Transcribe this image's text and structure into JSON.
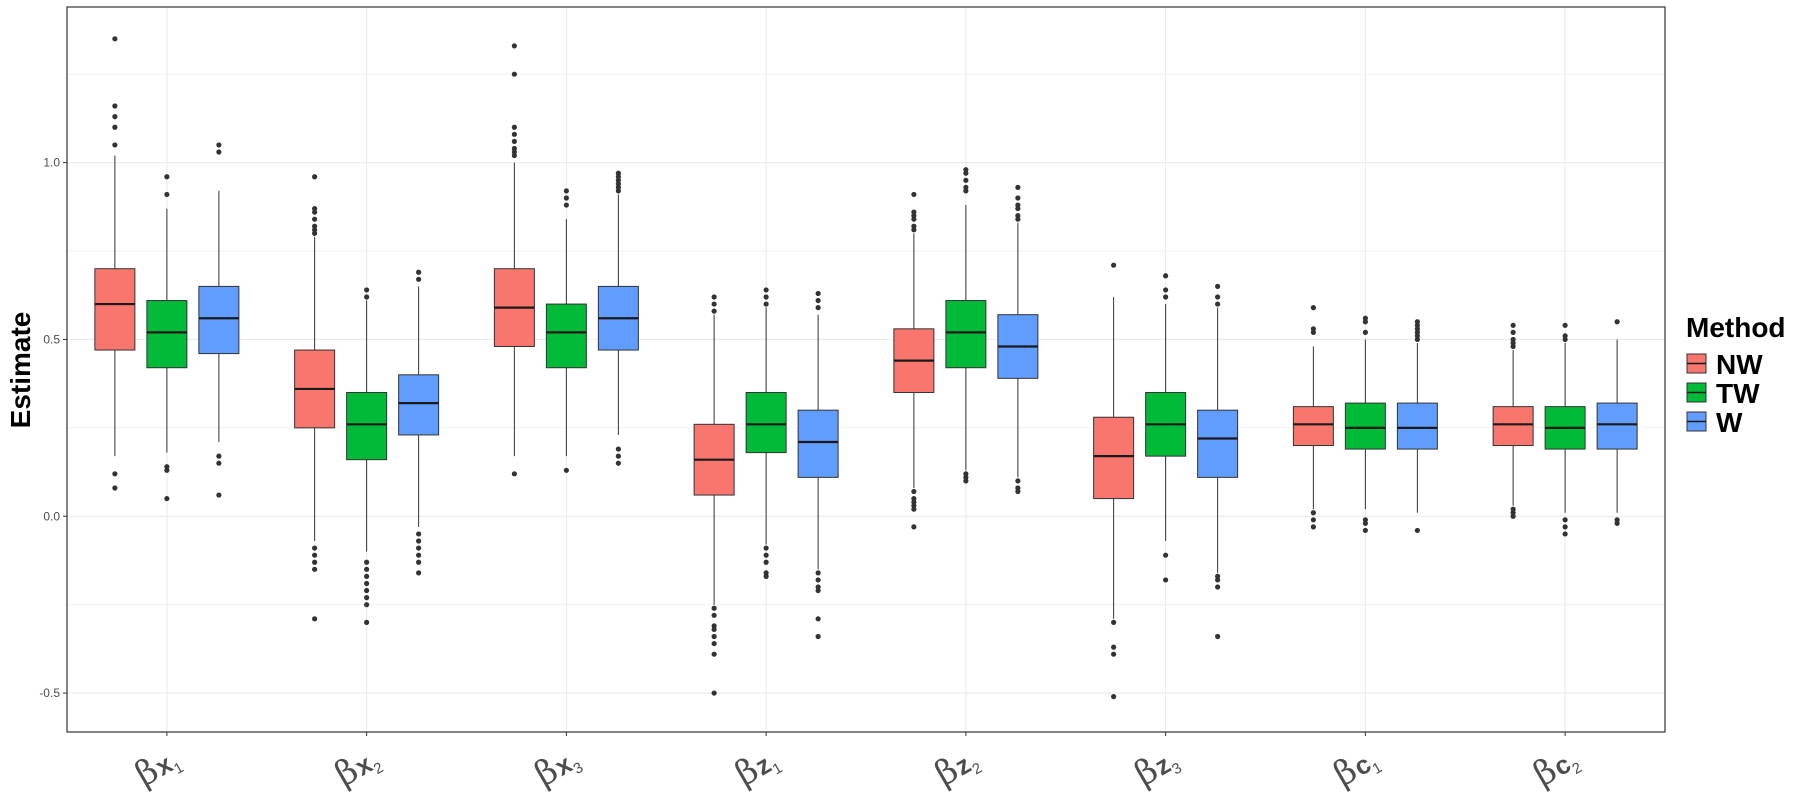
{
  "chart_data": {
    "type": "boxplot",
    "title": "",
    "xlabel": "",
    "ylabel": "Estimate",
    "ylim": [
      -0.61,
      1.44
    ],
    "yticks": [
      {
        "value": -0.5,
        "label": "-0.5"
      },
      {
        "value": 0.0,
        "label": "0.0"
      },
      {
        "value": 0.5,
        "label": "0.5"
      },
      {
        "value": 1.0,
        "label": "1.0"
      }
    ],
    "grid": true,
    "legend": {
      "title": "Method",
      "position": "right",
      "entries": [
        {
          "name": "NW",
          "color": "#F8766D"
        },
        {
          "name": "TW",
          "color": "#00BA38"
        },
        {
          "name": "W",
          "color": "#619CFF"
        }
      ]
    },
    "categories": [
      {
        "greek": "β",
        "sym": "x",
        "sub": "1"
      },
      {
        "greek": "β",
        "sym": "x",
        "sub": "2"
      },
      {
        "greek": "β",
        "sym": "x",
        "sub": "3"
      },
      {
        "greek": "β",
        "sym": "z",
        "sub": "1"
      },
      {
        "greek": "β",
        "sym": "z",
        "sub": "2"
      },
      {
        "greek": "β",
        "sym": "z",
        "sub": "3"
      },
      {
        "greek": "β",
        "sym": "c",
        "sub": "1"
      },
      {
        "greek": "β",
        "sym": "c",
        "sub": "2"
      }
    ],
    "series": [
      {
        "name": "NW",
        "boxes": [
          {
            "lower": 0.17,
            "q1": 0.47,
            "median": 0.6,
            "q3": 0.7,
            "upper": 1.02,
            "outliers": [
              1.35,
              1.16,
              1.13,
              1.1,
              1.05,
              0.12,
              0.08
            ]
          },
          {
            "lower": -0.07,
            "q1": 0.25,
            "median": 0.36,
            "q3": 0.47,
            "upper": 0.79,
            "outliers": [
              0.96,
              0.87,
              0.86,
              0.84,
              0.82,
              0.81,
              0.8,
              -0.09,
              -0.11,
              -0.13,
              -0.15,
              -0.29
            ]
          },
          {
            "lower": 0.17,
            "q1": 0.48,
            "median": 0.59,
            "q3": 0.7,
            "upper": 1.0,
            "outliers": [
              1.33,
              1.25,
              1.1,
              1.08,
              1.06,
              1.04,
              1.03,
              1.02,
              0.12
            ]
          },
          {
            "lower": -0.25,
            "q1": 0.06,
            "median": 0.16,
            "q3": 0.26,
            "upper": 0.57,
            "outliers": [
              0.62,
              0.6,
              0.58,
              -0.26,
              -0.28,
              -0.31,
              -0.32,
              -0.34,
              -0.36,
              -0.39,
              -0.5
            ]
          },
          {
            "lower": 0.08,
            "q1": 0.35,
            "median": 0.44,
            "q3": 0.53,
            "upper": 0.8,
            "outliers": [
              0.91,
              0.86,
              0.85,
              0.84,
              0.82,
              0.81,
              0.07,
              0.05,
              0.04,
              0.03,
              0.02,
              -0.03
            ]
          },
          {
            "lower": -0.29,
            "q1": 0.05,
            "median": 0.17,
            "q3": 0.28,
            "upper": 0.62,
            "outliers": [
              0.71,
              -0.3,
              -0.37,
              -0.39,
              -0.51
            ]
          },
          {
            "lower": 0.02,
            "q1": 0.2,
            "median": 0.26,
            "q3": 0.31,
            "upper": 0.48,
            "outliers": [
              0.59,
              0.53,
              0.52,
              0.01,
              -0.01,
              -0.03
            ]
          },
          {
            "lower": 0.03,
            "q1": 0.2,
            "median": 0.26,
            "q3": 0.31,
            "upper": 0.47,
            "outliers": [
              0.54,
              0.52,
              0.5,
              0.49,
              0.48,
              0.02,
              0.01,
              0.0
            ]
          }
        ]
      },
      {
        "name": "TW",
        "boxes": [
          {
            "lower": 0.18,
            "q1": 0.42,
            "median": 0.52,
            "q3": 0.61,
            "upper": 0.87,
            "outliers": [
              0.96,
              0.91,
              0.14,
              0.13,
              0.05
            ]
          },
          {
            "lower": -0.1,
            "q1": 0.16,
            "median": 0.26,
            "q3": 0.35,
            "upper": 0.61,
            "outliers": [
              0.64,
              0.62,
              -0.13,
              -0.15,
              -0.17,
              -0.19,
              -0.21,
              -0.23,
              -0.25,
              -0.3
            ]
          },
          {
            "lower": 0.17,
            "q1": 0.42,
            "median": 0.52,
            "q3": 0.6,
            "upper": 0.84,
            "outliers": [
              0.92,
              0.9,
              0.88,
              0.13
            ]
          },
          {
            "lower": -0.08,
            "q1": 0.18,
            "median": 0.26,
            "q3": 0.35,
            "upper": 0.59,
            "outliers": [
              0.64,
              0.62,
              0.6,
              -0.09,
              -0.11,
              -0.13,
              -0.16,
              -0.17
            ]
          },
          {
            "lower": 0.13,
            "q1": 0.42,
            "median": 0.52,
            "q3": 0.61,
            "upper": 0.88,
            "outliers": [
              0.98,
              0.97,
              0.95,
              0.93,
              0.92,
              0.12,
              0.11,
              0.1
            ]
          },
          {
            "lower": -0.07,
            "q1": 0.17,
            "median": 0.26,
            "q3": 0.35,
            "upper": 0.6,
            "outliers": [
              0.68,
              0.64,
              0.62,
              -0.11,
              -0.18
            ]
          },
          {
            "lower": 0.02,
            "q1": 0.19,
            "median": 0.25,
            "q3": 0.32,
            "upper": 0.5,
            "outliers": [
              0.56,
              0.55,
              0.52,
              -0.01,
              -0.02,
              -0.04
            ]
          },
          {
            "lower": 0.01,
            "q1": 0.19,
            "median": 0.25,
            "q3": 0.31,
            "upper": 0.49,
            "outliers": [
              0.54,
              0.51,
              0.5,
              -0.01,
              -0.03,
              -0.05
            ]
          }
        ]
      },
      {
        "name": "W",
        "boxes": [
          {
            "lower": 0.21,
            "q1": 0.46,
            "median": 0.56,
            "q3": 0.65,
            "upper": 0.92,
            "outliers": [
              1.05,
              1.03,
              0.17,
              0.15,
              0.06
            ]
          },
          {
            "lower": -0.03,
            "q1": 0.23,
            "median": 0.32,
            "q3": 0.4,
            "upper": 0.65,
            "outliers": [
              0.69,
              0.67,
              -0.05,
              -0.07,
              -0.09,
              -0.11,
              -0.13,
              -0.16
            ]
          },
          {
            "lower": 0.23,
            "q1": 0.47,
            "median": 0.56,
            "q3": 0.65,
            "upper": 0.91,
            "outliers": [
              0.97,
              0.96,
              0.95,
              0.94,
              0.93,
              0.92,
              0.19,
              0.17,
              0.15
            ]
          },
          {
            "lower": -0.15,
            "q1": 0.11,
            "median": 0.21,
            "q3": 0.3,
            "upper": 0.57,
            "outliers": [
              0.63,
              0.61,
              0.59,
              -0.16,
              -0.18,
              -0.2,
              -0.21,
              -0.29,
              -0.34
            ]
          },
          {
            "lower": 0.11,
            "q1": 0.39,
            "median": 0.48,
            "q3": 0.57,
            "upper": 0.83,
            "outliers": [
              0.93,
              0.9,
              0.88,
              0.87,
              0.85,
              0.84,
              0.1,
              0.08,
              0.07
            ]
          },
          {
            "lower": -0.16,
            "q1": 0.11,
            "median": 0.22,
            "q3": 0.3,
            "upper": 0.59,
            "outliers": [
              0.65,
              0.62,
              0.6,
              -0.17,
              -0.18,
              -0.2,
              -0.34
            ]
          },
          {
            "lower": 0.01,
            "q1": 0.19,
            "median": 0.25,
            "q3": 0.32,
            "upper": 0.49,
            "outliers": [
              0.55,
              0.54,
              0.53,
              0.52,
              0.51,
              0.5,
              -0.04
            ]
          },
          {
            "lower": 0.01,
            "q1": 0.19,
            "median": 0.26,
            "q3": 0.32,
            "upper": 0.5,
            "outliers": [
              0.55,
              -0.01,
              -0.02
            ]
          }
        ]
      }
    ]
  }
}
